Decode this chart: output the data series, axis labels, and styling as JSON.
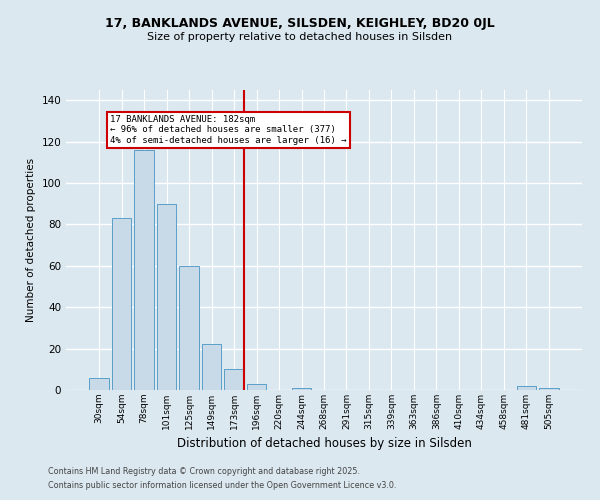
{
  "title1": "17, BANKLANDS AVENUE, SILSDEN, KEIGHLEY, BD20 0JL",
  "title2": "Size of property relative to detached houses in Silsden",
  "xlabel": "Distribution of detached houses by size in Silsden",
  "ylabel": "Number of detached properties",
  "bar_color": "#c8d9e8",
  "bar_edge_color": "#5a9ec9",
  "categories": [
    "30sqm",
    "54sqm",
    "78sqm",
    "101sqm",
    "125sqm",
    "149sqm",
    "173sqm",
    "196sqm",
    "220sqm",
    "244sqm",
    "268sqm",
    "291sqm",
    "315sqm",
    "339sqm",
    "363sqm",
    "386sqm",
    "410sqm",
    "434sqm",
    "458sqm",
    "481sqm",
    "505sqm"
  ],
  "values": [
    6,
    83,
    116,
    90,
    60,
    22,
    10,
    3,
    0,
    1,
    0,
    0,
    0,
    0,
    0,
    0,
    0,
    0,
    0,
    2,
    1
  ],
  "vline_x_index": 6,
  "vline_color": "#cc0000",
  "annotation_title": "17 BANKLANDS AVENUE: 182sqm",
  "annotation_line1": "← 96% of detached houses are smaller (377)",
  "annotation_line2": "4% of semi-detached houses are larger (16) →",
  "annotation_box_color": "#cc0000",
  "ylim": [
    0,
    145
  ],
  "yticks": [
    0,
    20,
    40,
    60,
    80,
    100,
    120,
    140
  ],
  "background_color": "#dce8f0",
  "fig_background_color": "#dce8f0",
  "grid_color": "#ffffff",
  "footer_line1": "Contains HM Land Registry data © Crown copyright and database right 2025.",
  "footer_line2": "Contains public sector information licensed under the Open Government Licence v3.0."
}
